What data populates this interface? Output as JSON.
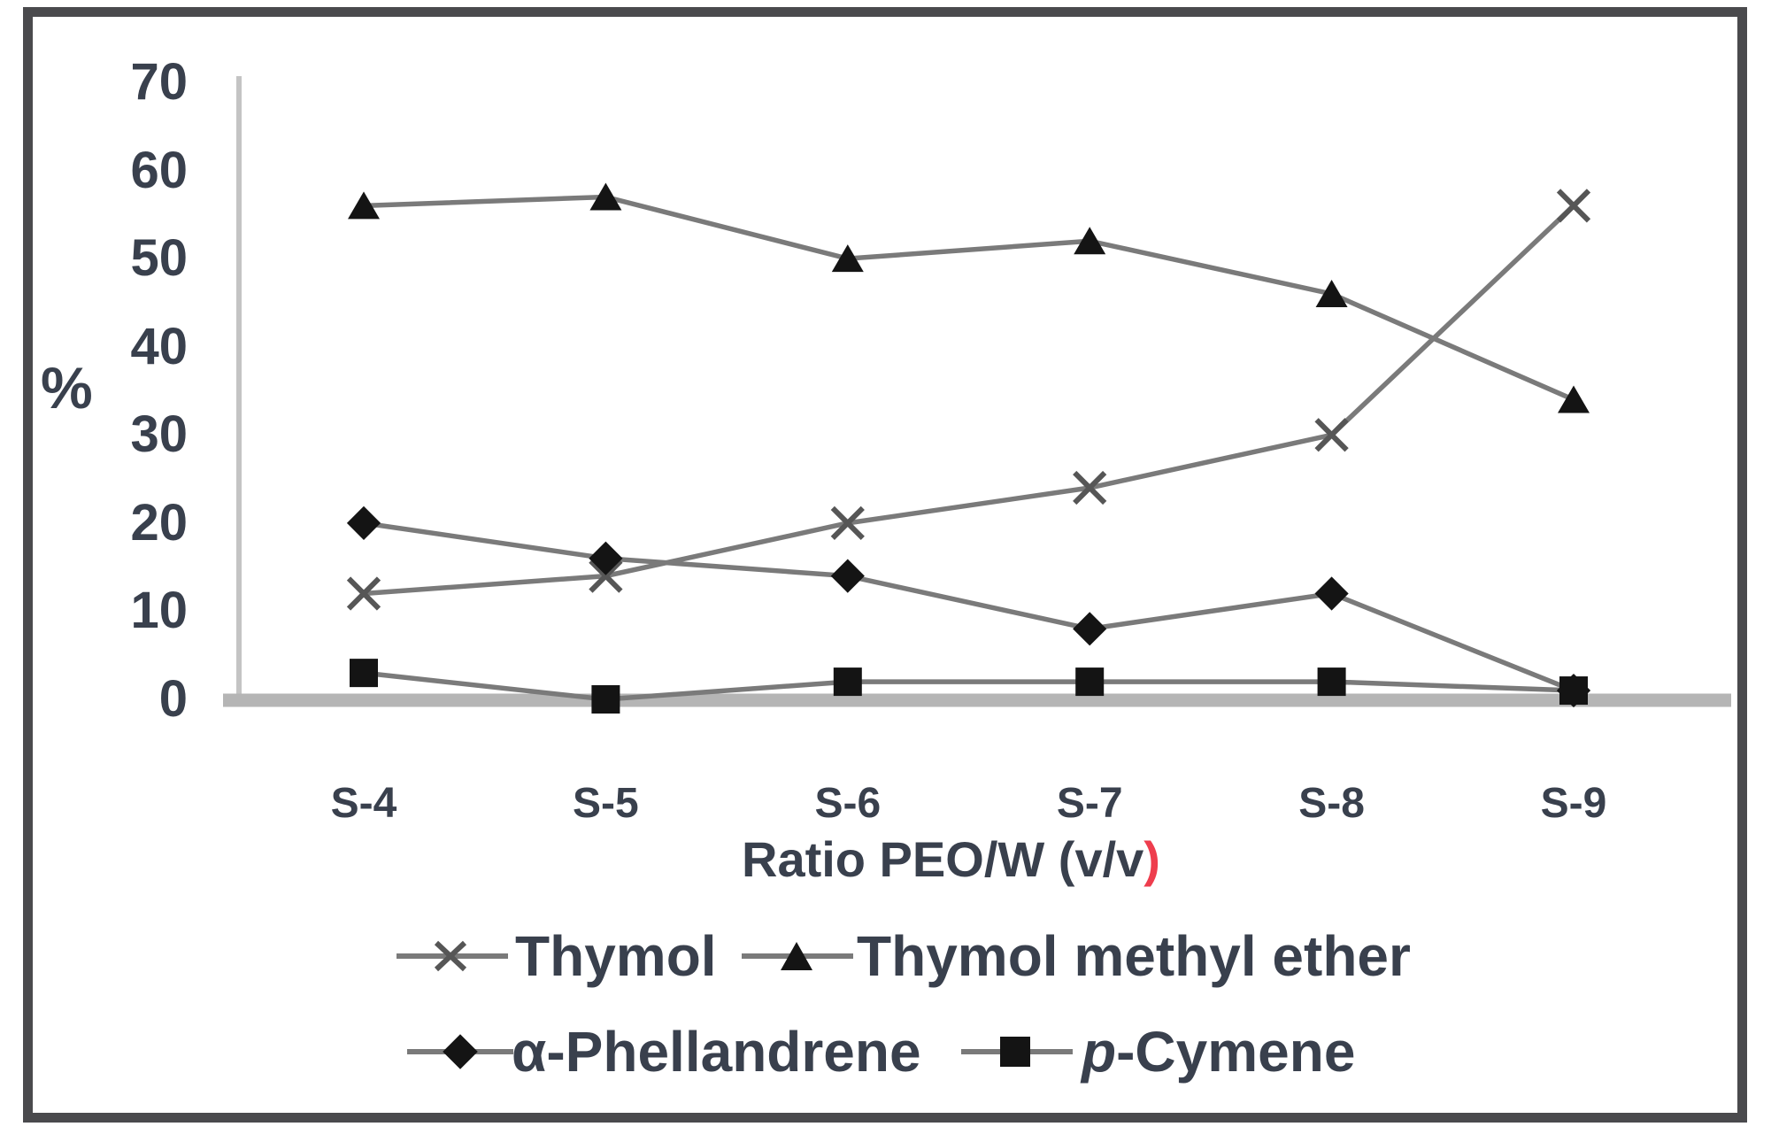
{
  "figure": {
    "frame_color": "#4a4a4d",
    "background": "#ffffff"
  },
  "chart_data": {
    "type": "line",
    "title": "",
    "xlabel": "Ratio PEO/W (v/v",
    "xlabel_suffix": ")",
    "xlabel_suffix_color": "#ee3d4d",
    "ylabel": "%",
    "categories": [
      "S-4",
      "S-5",
      "S-6",
      "S-7",
      "S-8",
      "S-9"
    ],
    "y_tick_labels": [
      "70",
      "60",
      "50",
      "40",
      "30",
      "20",
      "10",
      "0"
    ],
    "y_ticks_values": [
      70,
      60,
      50,
      40,
      30,
      20,
      10,
      0
    ],
    "ylim": [
      0,
      70
    ],
    "grid": false,
    "legend_position": "bottom",
    "series": [
      {
        "name": "Thymol",
        "marker": "x",
        "values": [
          12,
          14,
          20,
          24,
          30,
          56
        ]
      },
      {
        "name": "Thymol methyl ether",
        "marker": "triangle",
        "values": [
          56,
          57,
          50,
          52,
          46,
          34
        ]
      },
      {
        "name": "α-Phellandrene",
        "marker": "diamond",
        "values": [
          20,
          16,
          14,
          8,
          12,
          1
        ]
      },
      {
        "name": "p-Cymene",
        "name_italic_prefix": "p",
        "name_rest": "-Cymene",
        "marker": "square",
        "values": [
          3,
          0,
          2,
          2,
          2,
          1
        ]
      }
    ],
    "colors": {
      "line": "#7a7a7a",
      "marker": "#141414",
      "x_marker": "#565656",
      "axis": "#c4c4c4",
      "baseline": "#b5b5b5",
      "text": "#39404d",
      "accent_red": "#ee3d4d"
    }
  }
}
